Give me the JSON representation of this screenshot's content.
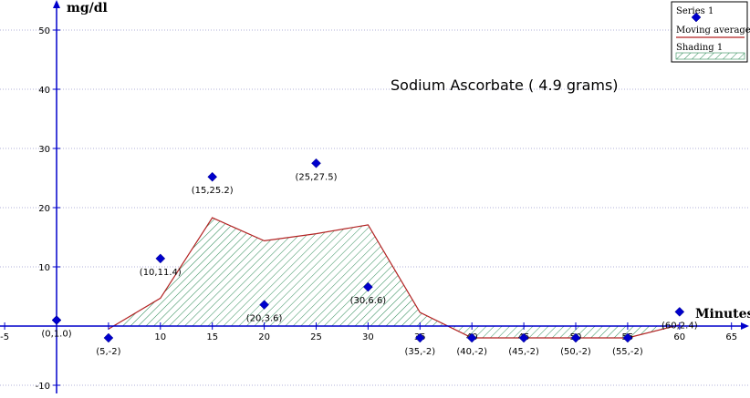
{
  "chart_data": {
    "type": "scatter",
    "title": "Sodium Ascorbate  ( 4.9 grams)",
    "xlabel": "Minutes",
    "ylabel": "mg/dl",
    "xlim": [
      -5,
      65
    ],
    "ylim": [
      -10,
      55
    ],
    "x_ticks": [
      -5,
      10,
      15,
      20,
      25,
      30,
      35,
      40,
      45,
      50,
      55,
      60,
      65
    ],
    "y_ticks": [
      -10,
      10,
      20,
      30,
      40,
      50
    ],
    "grid": "horizontal dotted",
    "colors": {
      "points": "#0000cc",
      "axes": "#0000cc",
      "moving_average": "#b22222",
      "shading": "#2e8b57",
      "grid": "#9999cc"
    },
    "series": [
      {
        "name": "Series 1",
        "points": [
          {
            "x": 0,
            "y": 1.0,
            "label": "(0,1.0)"
          },
          {
            "x": 5,
            "y": -2,
            "label": "(5,-2)"
          },
          {
            "x": 10,
            "y": 11.4,
            "label": "(10,11.4)"
          },
          {
            "x": 15,
            "y": 25.2,
            "label": "(15,25.2)"
          },
          {
            "x": 20,
            "y": 3.6,
            "label": "(20,3.6)"
          },
          {
            "x": 25,
            "y": 27.5,
            "label": "(25,27.5)"
          },
          {
            "x": 30,
            "y": 6.6,
            "label": "(30,6.6)"
          },
          {
            "x": 35,
            "y": -2,
            "label": "(35,-2)"
          },
          {
            "x": 40,
            "y": -2,
            "label": "(40,-2)"
          },
          {
            "x": 45,
            "y": -2,
            "label": "(45,-2)"
          },
          {
            "x": 50,
            "y": -2,
            "label": "(50,-2)"
          },
          {
            "x": 55,
            "y": -2,
            "label": "(55,-2)"
          },
          {
            "x": 60,
            "y": 2.4,
            "label": "(60,2.4)"
          }
        ]
      },
      {
        "name": "Moving average",
        "x": [
          5,
          10,
          15,
          20,
          25,
          30,
          35,
          40,
          45,
          50,
          55,
          60
        ],
        "y": [
          -0.5,
          4.7,
          18.3,
          14.4,
          15.6,
          17.1,
          2.3,
          -2,
          -2,
          -2,
          -2,
          0.2
        ]
      }
    ],
    "shading": {
      "name": "Shading 1",
      "baseline": 0
    },
    "legend": {
      "position": "top-right",
      "entries": [
        "Series 1",
        "Moving average",
        "Shading 1"
      ]
    }
  }
}
